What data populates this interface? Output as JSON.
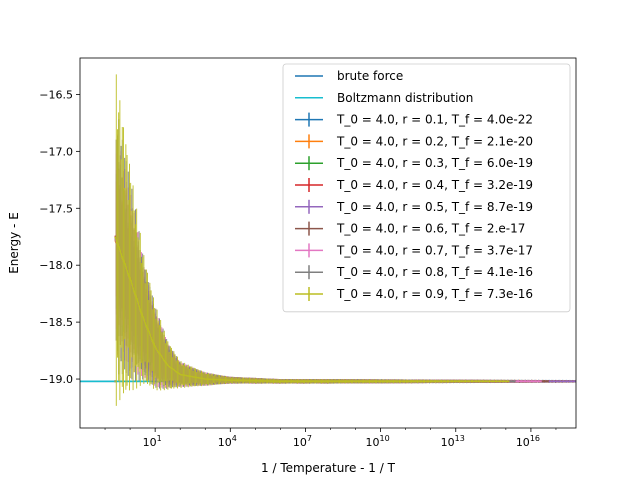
{
  "chart_data": {
    "type": "line",
    "title": "",
    "xlabel": "1 / Temperature - 1 / T",
    "ylabel": "Energy - E",
    "xscale": "log",
    "xlim_log10": [
      -2.0,
      17.8
    ],
    "ylim": [
      -19.43,
      -16.18
    ],
    "x_ticks": [
      {
        "base": "10",
        "exp": "1",
        "log10": 1
      },
      {
        "base": "10",
        "exp": "4",
        "log10": 4
      },
      {
        "base": "10",
        "exp": "7",
        "log10": 7
      },
      {
        "base": "10",
        "exp": "10",
        "log10": 10
      },
      {
        "base": "10",
        "exp": "13",
        "log10": 13
      },
      {
        "base": "10",
        "exp": "16",
        "log10": 16
      }
    ],
    "y_ticks": [
      -16.5,
      -17.0,
      -17.5,
      -18.0,
      -18.5,
      -19.0
    ],
    "y_tick_labels": [
      "−16.5",
      "−17.0",
      "−17.5",
      "−18.0",
      "−18.5",
      "−19.0"
    ],
    "grid": false,
    "legend_position": "top-right",
    "reference_lines": [
      {
        "name": "brute force",
        "color": "#1f77b4",
        "y": -19.02
      },
      {
        "name": "Boltzmann distribution",
        "color": "#17becf",
        "y": -19.02
      }
    ],
    "series": [
      {
        "name": "T_0 = 4.0, r = 0.1, T_f = 4.0e-22",
        "color": "#1f77b4",
        "x_end_log10": 21.4,
        "log10x": [
          -0.6,
          0,
          0.5,
          1,
          1.5,
          2,
          3,
          4,
          6,
          8,
          21.4
        ],
        "y": [
          -17.75,
          -18.12,
          -18.45,
          -18.72,
          -18.88,
          -18.96,
          -19.0,
          -19.01,
          -19.02,
          -19.02,
          -19.02
        ],
        "err": [
          0.5,
          0.45,
          0.35,
          0.25,
          0.15,
          0.08,
          0.04,
          0.03,
          0.02,
          0.02,
          0.01
        ]
      },
      {
        "name": "T_0 = 4.0, r = 0.2, T_f = 2.1e-20",
        "color": "#ff7f0e",
        "x_end_log10": 19.7,
        "log10x": [
          -0.6,
          0,
          0.5,
          1,
          1.5,
          2,
          3,
          4,
          6,
          8,
          19.7
        ],
        "y": [
          -17.78,
          -18.15,
          -18.48,
          -18.74,
          -18.89,
          -18.97,
          -19.0,
          -19.01,
          -19.02,
          -19.02,
          -19.02
        ],
        "err": [
          0.55,
          0.5,
          0.38,
          0.26,
          0.16,
          0.08,
          0.04,
          0.03,
          0.02,
          0.02,
          0.01
        ]
      },
      {
        "name": "T_0 = 4.0, r = 0.3, T_f = 6.0e-19",
        "color": "#2ca02c",
        "x_end_log10": 18.2,
        "log10x": [
          -0.6,
          0,
          0.5,
          1,
          1.5,
          2,
          3,
          4,
          6,
          8,
          18.2
        ],
        "y": [
          -17.76,
          -18.13,
          -18.46,
          -18.73,
          -18.88,
          -18.96,
          -19.0,
          -19.01,
          -19.02,
          -19.02,
          -19.02
        ],
        "err": [
          0.6,
          0.55,
          0.4,
          0.27,
          0.16,
          0.09,
          0.05,
          0.03,
          0.02,
          0.02,
          0.01
        ]
      },
      {
        "name": "T_0 = 4.0, r = 0.4, T_f = 3.2e-19",
        "color": "#d62728",
        "x_end_log10": 18.5,
        "log10x": [
          -0.6,
          0,
          0.5,
          1,
          1.5,
          2,
          3,
          4,
          6,
          8,
          18.5
        ],
        "y": [
          -17.74,
          -18.1,
          -18.44,
          -18.71,
          -18.87,
          -18.95,
          -19.0,
          -19.01,
          -19.02,
          -19.02,
          -19.02
        ],
        "err": [
          0.7,
          0.6,
          0.42,
          0.28,
          0.17,
          0.09,
          0.05,
          0.03,
          0.02,
          0.02,
          0.01
        ]
      },
      {
        "name": "T_0 = 4.0, r = 0.5, T_f = 8.7e-19",
        "color": "#9467bd",
        "x_end_log10": 18.06,
        "log10x": [
          -0.6,
          0,
          0.5,
          1,
          1.5,
          2,
          3,
          4,
          6,
          8,
          18.06
        ],
        "y": [
          -17.77,
          -18.14,
          -18.47,
          -18.73,
          -18.88,
          -18.96,
          -19.0,
          -19.01,
          -19.02,
          -19.02,
          -19.02
        ],
        "err": [
          0.8,
          0.65,
          0.45,
          0.3,
          0.18,
          0.1,
          0.05,
          0.03,
          0.02,
          0.02,
          0.01
        ]
      },
      {
        "name": "T_0 = 4.0, r = 0.6, T_f = 2.e-17",
        "color": "#8c564b",
        "x_end_log10": 16.7,
        "log10x": [
          -0.6,
          0,
          0.5,
          1,
          1.5,
          2,
          3,
          4,
          6,
          8,
          16.7
        ],
        "y": [
          -17.75,
          -18.12,
          -18.45,
          -18.72,
          -18.88,
          -18.96,
          -19.0,
          -19.01,
          -19.02,
          -19.02,
          -19.02
        ],
        "err": [
          0.9,
          0.7,
          0.48,
          0.32,
          0.19,
          0.1,
          0.05,
          0.03,
          0.02,
          0.02,
          0.01
        ]
      },
      {
        "name": "T_0 = 4.0, r = 0.7, T_f = 3.7e-17",
        "color": "#e377c2",
        "x_end_log10": 16.43,
        "log10x": [
          -0.6,
          0,
          0.5,
          1,
          1.5,
          2,
          3,
          4,
          6,
          8,
          16.43
        ],
        "y": [
          -17.76,
          -18.13,
          -18.46,
          -18.73,
          -18.88,
          -18.96,
          -19.0,
          -19.01,
          -19.02,
          -19.02,
          -19.02
        ],
        "err": [
          1.0,
          0.8,
          0.52,
          0.34,
          0.2,
          0.11,
          0.06,
          0.03,
          0.02,
          0.02,
          0.01
        ]
      },
      {
        "name": "T_0 = 4.0, r = 0.8, T_f = 4.1e-16",
        "color": "#7f7f7f",
        "x_end_log10": 15.39,
        "log10x": [
          -0.6,
          0,
          0.5,
          1,
          1.5,
          2,
          3,
          4,
          6,
          8,
          15.39
        ],
        "y": [
          -17.75,
          -18.12,
          -18.45,
          -18.72,
          -18.88,
          -18.96,
          -19.0,
          -19.01,
          -19.02,
          -19.02,
          -19.02
        ],
        "err": [
          1.2,
          0.9,
          0.56,
          0.36,
          0.21,
          0.11,
          0.06,
          0.03,
          0.02,
          0.02,
          0.01
        ]
      },
      {
        "name": "T_0 = 4.0, r = 0.9, T_f = 7.3e-16",
        "color": "#bcbd22",
        "x_end_log10": 15.14,
        "log10x": [
          -0.6,
          0,
          0.5,
          1,
          1.5,
          2,
          3,
          4,
          6,
          8,
          15.14
        ],
        "y": [
          -17.75,
          -18.12,
          -18.45,
          -18.72,
          -18.88,
          -18.96,
          -19.0,
          -19.01,
          -19.02,
          -19.02,
          -19.02
        ],
        "err": [
          1.5,
          1.0,
          0.6,
          0.38,
          0.22,
          0.12,
          0.06,
          0.03,
          0.02,
          0.02,
          0.01
        ]
      }
    ]
  }
}
